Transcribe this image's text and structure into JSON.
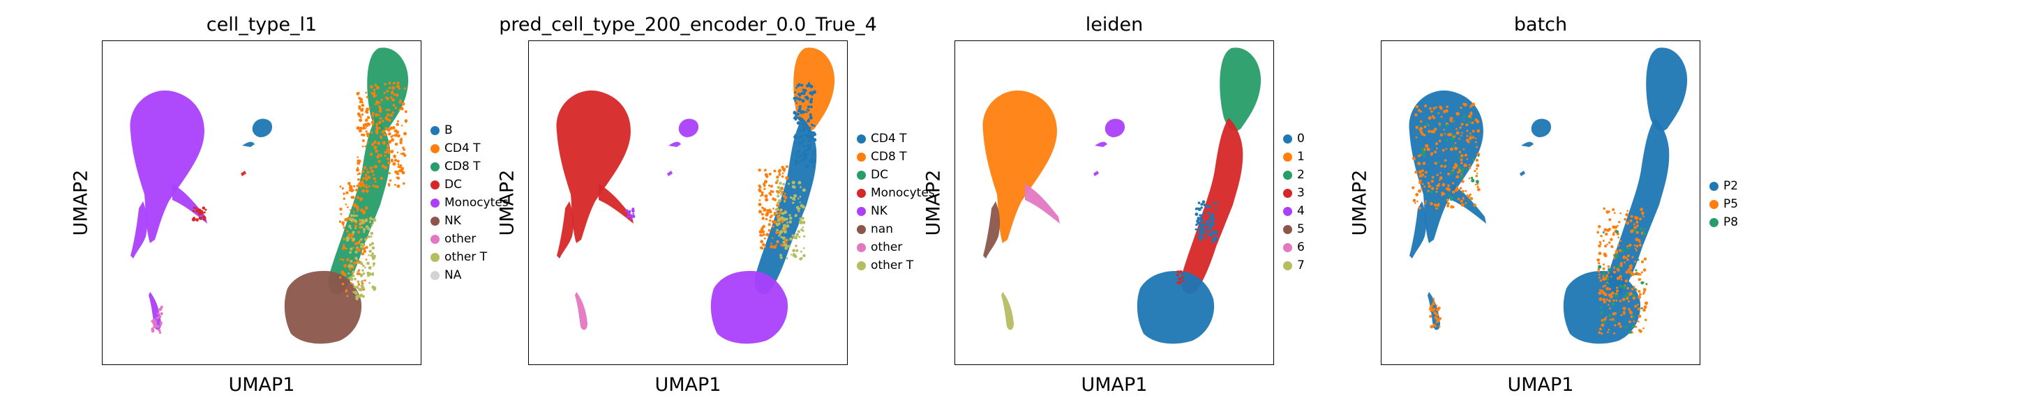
{
  "chart_data": [
    {
      "type": "scatter",
      "title": "cell_type_l1",
      "xlabel": "UMAP1",
      "ylabel": "UMAP2",
      "grid": false,
      "legend": {
        "placement": "right",
        "entries": [
          {
            "label": "B",
            "color": "#1f77b4"
          },
          {
            "label": "CD4 T",
            "color": "#ff7f0e"
          },
          {
            "label": "CD8 T",
            "color": "#279e68"
          },
          {
            "label": "DC",
            "color": "#d62728"
          },
          {
            "label": "Monocytes",
            "color": "#aa40fc"
          },
          {
            "label": "NK",
            "color": "#8c564b"
          },
          {
            "label": "other",
            "color": "#e377c2"
          },
          {
            "label": "other T",
            "color": "#b5bd61"
          },
          {
            "label": "NA",
            "color": "#d3d3d3"
          }
        ]
      }
    },
    {
      "type": "scatter",
      "title": "pred_cell_type_200_encoder_0.0_True_4",
      "xlabel": "UMAP1",
      "ylabel": "UMAP2",
      "grid": false,
      "legend": {
        "placement": "right",
        "entries": [
          {
            "label": "CD4 T",
            "color": "#1f77b4"
          },
          {
            "label": "CD8 T",
            "color": "#ff7f0e"
          },
          {
            "label": "DC",
            "color": "#279e68"
          },
          {
            "label": "Monocytes",
            "color": "#d62728"
          },
          {
            "label": "NK",
            "color": "#aa40fc"
          },
          {
            "label": "nan",
            "color": "#8c564b"
          },
          {
            "label": "other",
            "color": "#e377c2"
          },
          {
            "label": "other T",
            "color": "#b5bd61"
          }
        ]
      }
    },
    {
      "type": "scatter",
      "title": "leiden",
      "xlabel": "UMAP1",
      "ylabel": "UMAP2",
      "grid": false,
      "legend": {
        "placement": "right",
        "entries": [
          {
            "label": "0",
            "color": "#1f77b4"
          },
          {
            "label": "1",
            "color": "#ff7f0e"
          },
          {
            "label": "2",
            "color": "#279e68"
          },
          {
            "label": "3",
            "color": "#d62728"
          },
          {
            "label": "4",
            "color": "#aa40fc"
          },
          {
            "label": "5",
            "color": "#8c564b"
          },
          {
            "label": "6",
            "color": "#e377c2"
          },
          {
            "label": "7",
            "color": "#b5bd61"
          }
        ]
      }
    },
    {
      "type": "scatter",
      "title": "batch",
      "xlabel": "UMAP1",
      "ylabel": "UMAP2",
      "grid": false,
      "legend": {
        "placement": "right",
        "entries": [
          {
            "label": "P2",
            "color": "#1f77b4"
          },
          {
            "label": "P5",
            "color": "#ff7f0e"
          },
          {
            "label": "P8",
            "color": "#279e68"
          }
        ]
      }
    }
  ]
}
